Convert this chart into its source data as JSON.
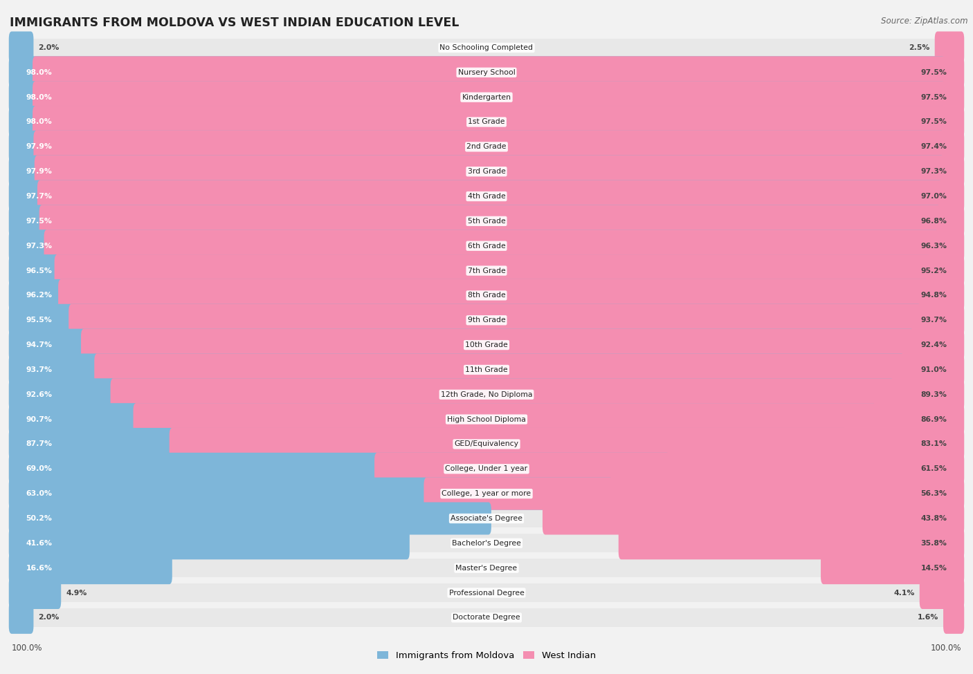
{
  "title": "IMMIGRANTS FROM MOLDOVA VS WEST INDIAN EDUCATION LEVEL",
  "source": "Source: ZipAtlas.com",
  "categories": [
    "No Schooling Completed",
    "Nursery School",
    "Kindergarten",
    "1st Grade",
    "2nd Grade",
    "3rd Grade",
    "4th Grade",
    "5th Grade",
    "6th Grade",
    "7th Grade",
    "8th Grade",
    "9th Grade",
    "10th Grade",
    "11th Grade",
    "12th Grade, No Diploma",
    "High School Diploma",
    "GED/Equivalency",
    "College, Under 1 year",
    "College, 1 year or more",
    "Associate's Degree",
    "Bachelor's Degree",
    "Master's Degree",
    "Professional Degree",
    "Doctorate Degree"
  ],
  "moldova": [
    2.0,
    98.0,
    98.0,
    98.0,
    97.9,
    97.9,
    97.7,
    97.5,
    97.3,
    96.5,
    96.2,
    95.5,
    94.7,
    93.7,
    92.6,
    90.7,
    87.7,
    69.0,
    63.0,
    50.2,
    41.6,
    16.6,
    4.9,
    2.0
  ],
  "west_indian": [
    2.5,
    97.5,
    97.5,
    97.5,
    97.4,
    97.3,
    97.0,
    96.8,
    96.3,
    95.2,
    94.8,
    93.7,
    92.4,
    91.0,
    89.3,
    86.9,
    83.1,
    61.5,
    56.3,
    43.8,
    35.8,
    14.5,
    4.1,
    1.6
  ],
  "moldova_color": "#7EB6D9",
  "west_indian_color": "#F48EB1",
  "background_color": "#F2F2F2",
  "row_bg_color": "#E8E8E8",
  "legend_moldova": "Immigrants from Moldova",
  "legend_west_indian": "West Indian",
  "bottom_left_label": "100.0%",
  "bottom_right_label": "100.0%"
}
